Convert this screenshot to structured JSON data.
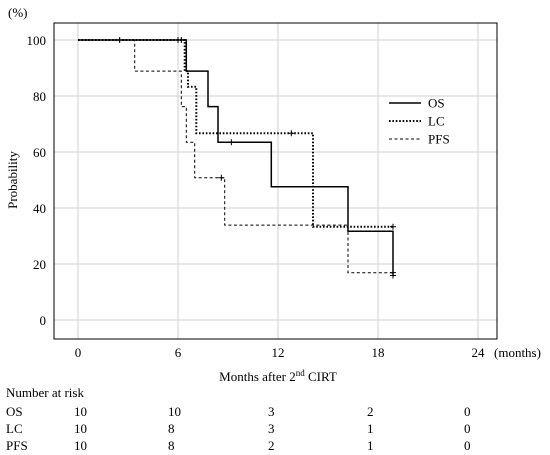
{
  "chart_data": {
    "type": "line",
    "step": true,
    "y_unit": "(%)",
    "ylabel": "Probability",
    "xlabel_main": "Months after 2",
    "xlabel_sup": "nd",
    "xlabel_tail": " CIRT",
    "x_unit": "(months)",
    "xlim": [
      0,
      24
    ],
    "ylim": [
      0,
      100
    ],
    "x_ticks": [
      0,
      6,
      12,
      18,
      24
    ],
    "y_ticks": [
      0,
      20,
      40,
      60,
      80,
      100
    ],
    "grid": true,
    "legend_position": "right",
    "series": [
      {
        "name": "OS",
        "style": "solid",
        "color": "#000000",
        "points": [
          [
            0,
            100
          ],
          [
            6.5,
            100
          ],
          [
            6.5,
            88.9
          ],
          [
            7.8,
            88.9
          ],
          [
            7.8,
            76.2
          ],
          [
            8.4,
            76.2
          ],
          [
            8.4,
            63.5
          ],
          [
            11.6,
            63.5
          ],
          [
            11.6,
            47.6
          ],
          [
            16.2,
            47.6
          ],
          [
            16.2,
            31.7
          ],
          [
            18.9,
            31.7
          ],
          [
            18.9,
            15.9
          ]
        ],
        "censored": [
          [
            2.5,
            100
          ],
          [
            6.0,
            100
          ],
          [
            9.2,
            63.5
          ],
          [
            18.9,
            15.9
          ]
        ]
      },
      {
        "name": "LC",
        "style": "dotted",
        "color": "#000000",
        "points": [
          [
            0,
            100
          ],
          [
            6.4,
            100
          ],
          [
            6.4,
            88.9
          ],
          [
            6.6,
            88.9
          ],
          [
            6.6,
            83.3
          ],
          [
            7.1,
            83.3
          ],
          [
            7.1,
            66.7
          ],
          [
            14.1,
            66.7
          ],
          [
            14.1,
            33.3
          ],
          [
            18.9,
            33.3
          ]
        ],
        "censored": [
          [
            6.0,
            100
          ],
          [
            6.2,
            100
          ],
          [
            12.8,
            66.7
          ],
          [
            18.9,
            33.3
          ]
        ]
      },
      {
        "name": "PFS",
        "style": "dashed",
        "color": "#000000",
        "points": [
          [
            0,
            100
          ],
          [
            3.4,
            100
          ],
          [
            3.4,
            88.9
          ],
          [
            6.2,
            88.9
          ],
          [
            6.2,
            76.2
          ],
          [
            6.5,
            76.2
          ],
          [
            6.5,
            63.5
          ],
          [
            7.0,
            63.5
          ],
          [
            7.0,
            50.8
          ],
          [
            8.8,
            50.8
          ],
          [
            8.8,
            33.9
          ],
          [
            16.2,
            33.9
          ],
          [
            16.2,
            16.9
          ],
          [
            18.9,
            16.9
          ]
        ],
        "censored": [
          [
            8.6,
            50.8
          ],
          [
            18.9,
            16.9
          ]
        ]
      }
    ]
  },
  "risk_table": {
    "title": "Number at risk",
    "rows": [
      {
        "label": "OS",
        "values": [
          "10",
          "10",
          "3",
          "2",
          "0"
        ]
      },
      {
        "label": "LC",
        "values": [
          "10",
          "8",
          "3",
          "1",
          "0"
        ]
      },
      {
        "label": "PFS",
        "values": [
          "10",
          "8",
          "2",
          "1",
          "0"
        ]
      }
    ]
  }
}
